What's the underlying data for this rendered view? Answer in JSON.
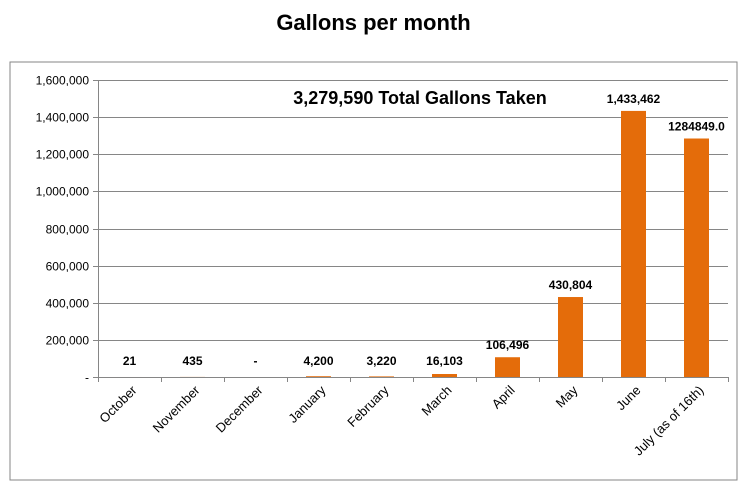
{
  "chart_data": {
    "type": "bar",
    "title": "Gallons per month",
    "annotation": "3,279,590 Total Gallons Taken",
    "categories": [
      "October",
      "November",
      "December",
      "January",
      "February",
      "March",
      "April",
      "May",
      "June",
      "July (as of 16th)"
    ],
    "values": [
      21,
      435,
      0,
      4200,
      3220,
      16103,
      106496,
      430804,
      1433462,
      1284849
    ],
    "data_labels": [
      "21",
      "435",
      "-",
      "4,200",
      "3,220",
      "16,103",
      "106,496",
      "430,804",
      "1,433,462",
      "1284849.0"
    ],
    "yticks": [
      "-",
      "200,000",
      "400,000",
      "600,000",
      "800,000",
      "1,000,000",
      "1,200,000",
      "1,400,000",
      "1,600,000"
    ],
    "ytick_values": [
      0,
      200000,
      400000,
      600000,
      800000,
      1000000,
      1200000,
      1400000,
      1600000
    ],
    "ylim": [
      0,
      1600000
    ],
    "xlabel": "",
    "ylabel": "",
    "grid": true,
    "bar_color": "#E46C0A"
  }
}
